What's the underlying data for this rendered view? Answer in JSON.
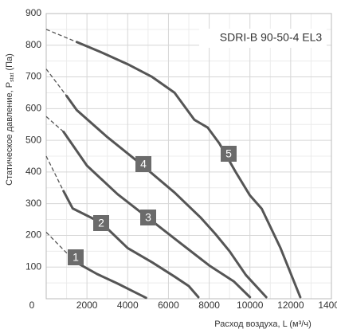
{
  "chart_data": {
    "type": "line",
    "annotation": "SDRI-B 90-50-4 EL3",
    "x_label": "Расход воздуха, L (м³/ч)",
    "y_label": [
      "Статическое давление, P",
      "stat",
      " (Па)"
    ],
    "xlim": [
      0,
      14000
    ],
    "ylim": [
      0,
      900
    ],
    "xticks": [
      0,
      2000,
      4000,
      6000,
      8000,
      10000,
      12000,
      14000
    ],
    "yticks": [
      0,
      100,
      200,
      300,
      400,
      500,
      600,
      700,
      800,
      900
    ],
    "grid": true,
    "series": [
      {
        "name": "1",
        "color": "#555555",
        "dashed_x": [
          0,
          1150
        ],
        "dashed_values": [
          210,
          135
        ],
        "x": [
          1150,
          1600,
          2500,
          3500,
          4300,
          4900
        ],
        "values": [
          135,
          110,
          78,
          48,
          22,
          3
        ]
      },
      {
        "name": "2",
        "color": "#555555",
        "dashed_x": [
          0,
          850
        ],
        "dashed_values": [
          450,
          340
        ],
        "x": [
          850,
          1300,
          2700,
          4000,
          5200,
          6300,
          7000,
          7470
        ],
        "values": [
          340,
          285,
          240,
          160,
          115,
          70,
          40,
          5
        ]
      },
      {
        "name": "3",
        "color": "#555555",
        "dashed_x": [
          0,
          850
        ],
        "dashed_values": [
          575,
          527
        ],
        "x": [
          850,
          2000,
          3500,
          5000,
          6500,
          8000,
          9200,
          10000
        ],
        "values": [
          527,
          420,
          330,
          255,
          180,
          105,
          55,
          5
        ]
      },
      {
        "name": "4",
        "color": "#555555",
        "dashed_x": [
          0,
          1000
        ],
        "dashed_values": [
          725,
          640
        ],
        "x": [
          1000,
          1500,
          3000,
          4700,
          6300,
          7600,
          8300,
          9000,
          9800,
          10800
        ],
        "values": [
          640,
          595,
          510,
          422,
          335,
          255,
          205,
          150,
          75,
          5
        ]
      },
      {
        "name": "5",
        "color": "#555555",
        "dashed_x": [
          0,
          1500
        ],
        "dashed_values": [
          850,
          810
        ],
        "x": [
          1500,
          2800,
          4000,
          5200,
          6300,
          7270,
          7930,
          8500,
          9300,
          10000,
          10580,
          11500,
          12470
        ],
        "values": [
          810,
          775,
          740,
          700,
          650,
          565,
          540,
          490,
          400,
          326,
          284,
          160,
          5
        ]
      }
    ]
  }
}
